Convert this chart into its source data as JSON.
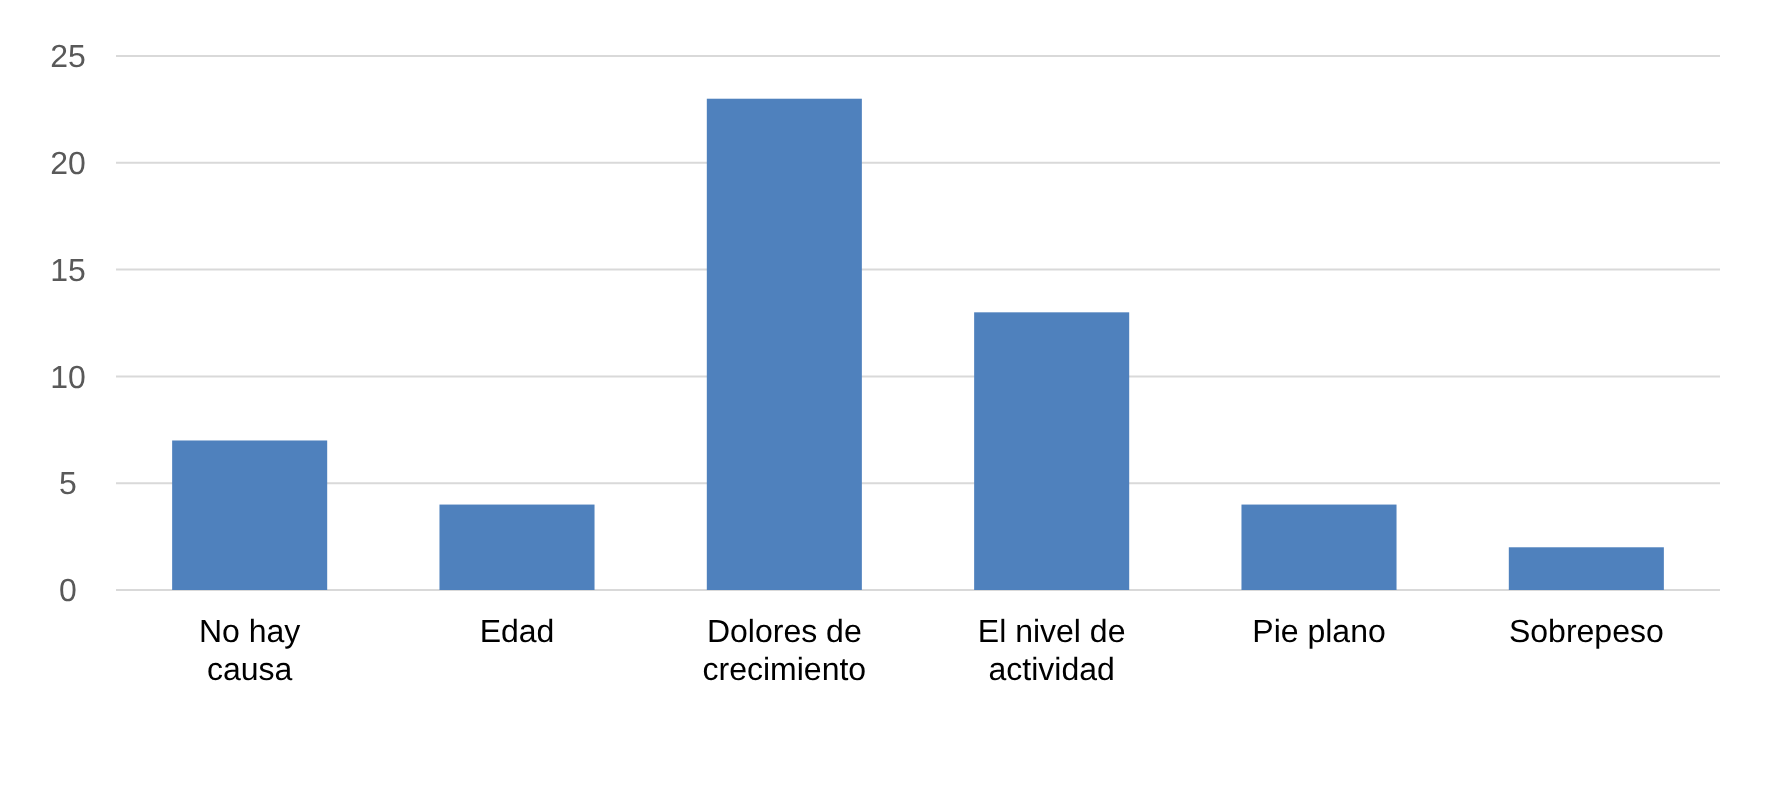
{
  "chart_data": {
    "type": "bar",
    "categories": [
      "No hay causa",
      "Edad",
      "Dolores de crecimiento",
      "El nivel de actividad",
      "Pie plano",
      "Sobrepeso"
    ],
    "values": [
      7,
      4,
      23,
      13,
      4,
      2
    ],
    "color": "#4f81bd",
    "ylim": [
      0,
      25
    ],
    "yticks": [
      0,
      5,
      10,
      15,
      20,
      25
    ],
    "grid": "y"
  }
}
